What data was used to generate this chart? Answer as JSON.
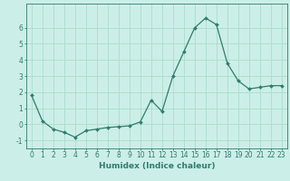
{
  "x": [
    0,
    1,
    2,
    3,
    4,
    5,
    6,
    7,
    8,
    9,
    10,
    11,
    12,
    13,
    14,
    15,
    16,
    17,
    18,
    19,
    20,
    21,
    22,
    23
  ],
  "y": [
    1.8,
    0.2,
    -0.3,
    -0.5,
    -0.8,
    -0.4,
    -0.3,
    -0.2,
    -0.15,
    -0.1,
    0.15,
    1.5,
    0.8,
    3.0,
    4.5,
    6.0,
    6.6,
    6.2,
    3.8,
    2.7,
    2.2,
    2.3,
    2.4,
    2.4
  ],
  "line_color": "#2e7d6e",
  "marker": "D",
  "marker_size": 2.0,
  "bg_color": "#cceee8",
  "grid_color": "#aaddcc",
  "xlabel": "Humidex (Indice chaleur)",
  "ylim": [
    -1.5,
    7.5
  ],
  "xlim": [
    -0.5,
    23.5
  ],
  "yticks": [
    -1,
    0,
    1,
    2,
    3,
    4,
    5,
    6
  ],
  "xticks": [
    0,
    1,
    2,
    3,
    4,
    5,
    6,
    7,
    8,
    9,
    10,
    11,
    12,
    13,
    14,
    15,
    16,
    17,
    18,
    19,
    20,
    21,
    22,
    23
  ],
  "xlabel_fontsize": 6.5,
  "tick_fontsize": 5.5
}
